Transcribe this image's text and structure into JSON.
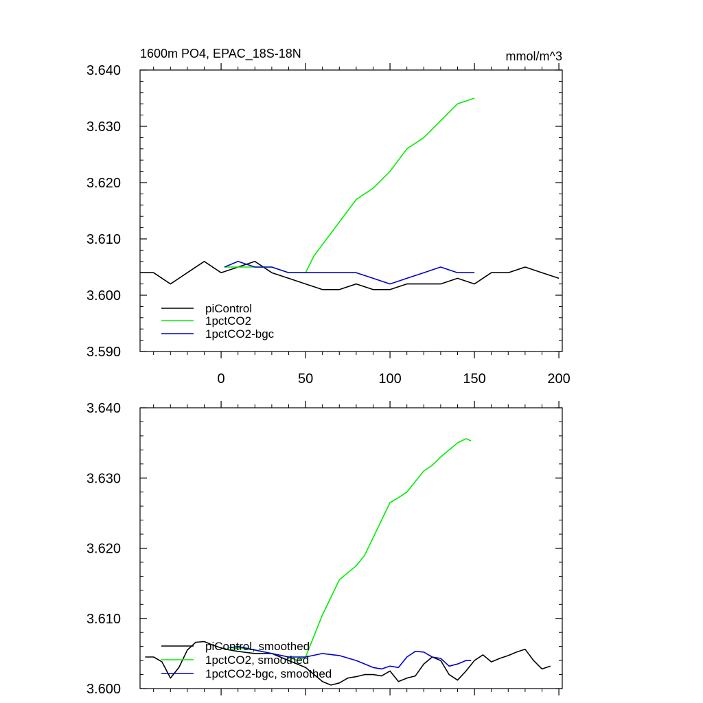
{
  "chart_data": [
    {
      "type": "line",
      "title": "1600m PO4, EPAC_18S-18N",
      "units": "mmol/m^3",
      "xlabel": "",
      "ylabel": "",
      "xlim": [
        -48,
        202
      ],
      "ylim": [
        3.59,
        3.64
      ],
      "xticks": [
        0,
        50,
        100,
        150,
        200
      ],
      "xtick_labels": [
        "0",
        "50",
        "100",
        "150",
        "200"
      ],
      "yticks": [
        3.59,
        3.6,
        3.61,
        3.62,
        3.63,
        3.64
      ],
      "ytick_labels": [
        "3.590",
        "3.600",
        "3.610",
        "3.620",
        "3.630",
        "3.640"
      ],
      "grid": false,
      "legend_position": "bottom-left",
      "series": [
        {
          "name": "piControl",
          "color": "#000000",
          "x": [
            -48,
            -40,
            -30,
            -20,
            -10,
            0,
            10,
            20,
            30,
            40,
            50,
            60,
            70,
            80,
            90,
            100,
            110,
            120,
            130,
            140,
            150,
            160,
            170,
            180,
            190,
            200
          ],
          "y": [
            3.604,
            3.604,
            3.602,
            3.604,
            3.606,
            3.604,
            3.605,
            3.606,
            3.604,
            3.603,
            3.602,
            3.601,
            3.601,
            3.602,
            3.601,
            3.601,
            3.602,
            3.602,
            3.602,
            3.603,
            3.602,
            3.604,
            3.604,
            3.605,
            3.604,
            3.603
          ]
        },
        {
          "name": "1pctCO2",
          "color": "#00ee00",
          "x": [
            2,
            10,
            20,
            30,
            40,
            50,
            55,
            60,
            70,
            80,
            90,
            100,
            110,
            120,
            130,
            140,
            150
          ],
          "y": [
            3.605,
            3.605,
            3.605,
            3.605,
            3.604,
            3.604,
            3.607,
            3.609,
            3.613,
            3.617,
            3.619,
            3.622,
            3.626,
            3.628,
            3.631,
            3.634,
            3.635
          ]
        },
        {
          "name": "1pctCO2-bgc",
          "color": "#0000cc",
          "x": [
            2,
            10,
            20,
            30,
            40,
            50,
            60,
            70,
            80,
            90,
            100,
            110,
            120,
            130,
            140,
            150
          ],
          "y": [
            3.605,
            3.606,
            3.605,
            3.605,
            3.604,
            3.604,
            3.604,
            3.604,
            3.604,
            3.603,
            3.602,
            3.603,
            3.604,
            3.605,
            3.604,
            3.604
          ]
        }
      ],
      "legend": [
        "piControl",
        "1pctCO2",
        "1pctCO2-bgc"
      ]
    },
    {
      "type": "line",
      "title": "",
      "xlabel": "",
      "ylabel": "",
      "xlim": [
        -48,
        202
      ],
      "ylim": [
        3.6,
        3.64
      ],
      "xticks": [
        0,
        50,
        100,
        150,
        200
      ],
      "yticks": [
        3.6,
        3.61,
        3.62,
        3.63,
        3.64
      ],
      "ytick_labels": [
        "3.600",
        "3.610",
        "3.620",
        "3.630",
        "3.640"
      ],
      "grid": false,
      "legend_position": "bottom-left",
      "series": [
        {
          "name": "piControl, smoothed",
          "color": "#000000",
          "x": [
            -45,
            -40,
            -35,
            -30,
            -25,
            -20,
            -15,
            -10,
            -5,
            0,
            5,
            10,
            20,
            30,
            40,
            50,
            60,
            65,
            70,
            75,
            80,
            85,
            90,
            95,
            100,
            105,
            110,
            115,
            120,
            125,
            130,
            135,
            140,
            145,
            150,
            155,
            160,
            165,
            170,
            175,
            180,
            185,
            190,
            195
          ],
          "y": [
            3.6045,
            3.6045,
            3.6038,
            3.6015,
            3.603,
            3.6055,
            3.6066,
            3.6067,
            3.6062,
            3.6058,
            3.6055,
            3.6053,
            3.605,
            3.605,
            3.604,
            3.603,
            3.601,
            3.6005,
            3.6008,
            3.6015,
            3.6017,
            3.602,
            3.602,
            3.6018,
            3.6025,
            3.601,
            3.6015,
            3.6018,
            3.6035,
            3.6045,
            3.604,
            3.602,
            3.6012,
            3.6025,
            3.604,
            3.6048,
            3.6038,
            3.6043,
            3.6047,
            3.6052,
            3.6056,
            3.604,
            3.6028,
            3.6032
          ]
        },
        {
          "name": "1pctCO2, smoothed",
          "color": "#00ee00",
          "x": [
            5,
            10,
            20,
            30,
            40,
            45,
            50,
            55,
            60,
            65,
            70,
            75,
            80,
            85,
            90,
            95,
            100,
            105,
            110,
            115,
            120,
            125,
            130,
            135,
            140,
            145,
            148
          ],
          "y": [
            3.6055,
            3.6058,
            3.6055,
            3.605,
            3.6045,
            3.604,
            3.6045,
            3.6075,
            3.6105,
            3.613,
            3.6155,
            3.6165,
            3.6175,
            3.619,
            3.6215,
            3.624,
            3.6265,
            3.6272,
            3.628,
            3.6295,
            3.631,
            3.6318,
            3.633,
            3.634,
            3.635,
            3.6356,
            3.6353
          ]
        },
        {
          "name": "1pctCO2-bgc, smoothed",
          "color": "#0000cc",
          "x": [
            5,
            10,
            20,
            30,
            40,
            50,
            60,
            70,
            80,
            90,
            95,
            100,
            105,
            110,
            115,
            120,
            125,
            130,
            135,
            140,
            145,
            148
          ],
          "y": [
            3.6058,
            3.606,
            3.6055,
            3.605,
            3.6045,
            3.6045,
            3.605,
            3.6047,
            3.604,
            3.603,
            3.6028,
            3.6032,
            3.603,
            3.6045,
            3.6053,
            3.6052,
            3.6045,
            3.6043,
            3.6032,
            3.6035,
            3.604,
            3.604
          ]
        }
      ],
      "legend": [
        "piControl, smoothed",
        "1pctCO2, smoothed",
        "1pctCO2-bgc, smoothed"
      ]
    }
  ]
}
